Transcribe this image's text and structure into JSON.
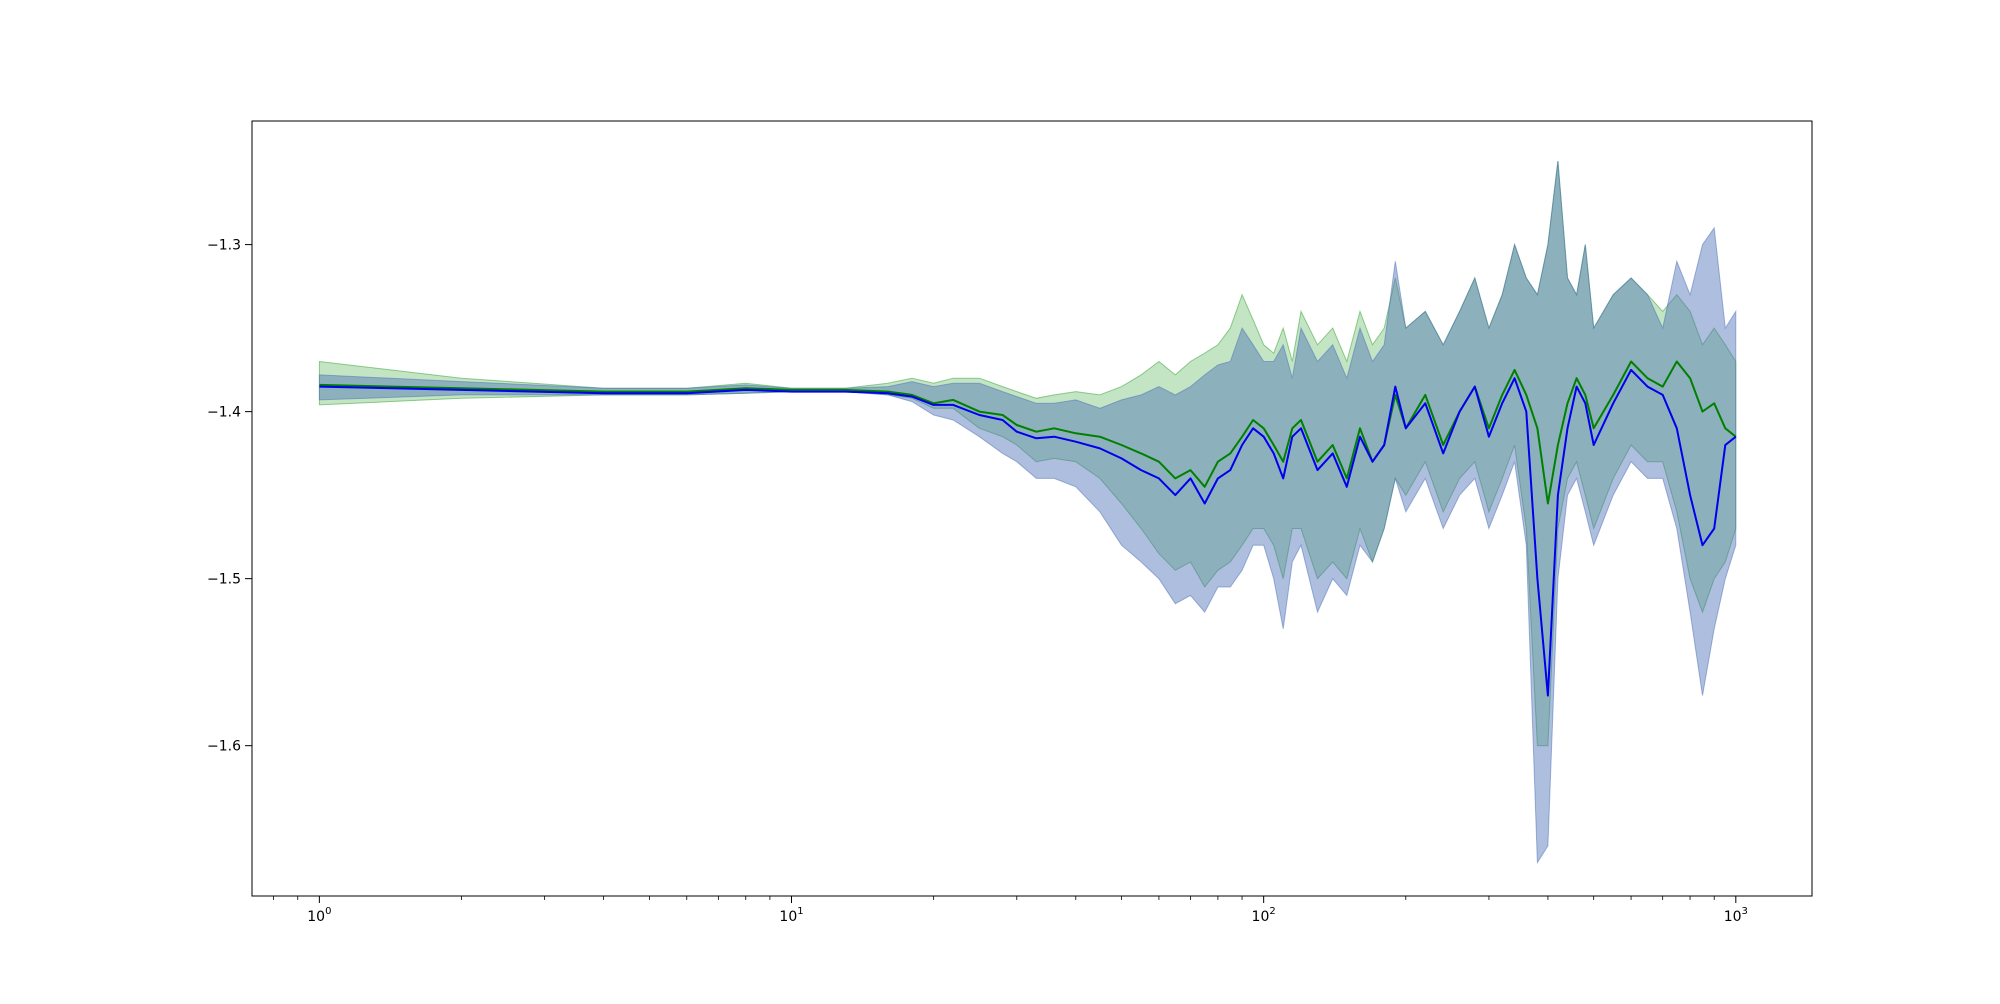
{
  "chart_data": {
    "type": "line",
    "title": "",
    "xlabel": "",
    "ylabel": "",
    "xscale": "log",
    "xlim": [
      0.72,
      1450
    ],
    "ylim": [
      -1.69,
      -1.226
    ],
    "grid": false,
    "legend": "none",
    "x_ticks": [
      {
        "value": 1,
        "base": "10",
        "exp": "0"
      },
      {
        "value": 10,
        "base": "10",
        "exp": "1"
      },
      {
        "value": 100,
        "base": "10",
        "exp": "2"
      },
      {
        "value": 1000,
        "base": "10",
        "exp": "3"
      }
    ],
    "y_ticks": [
      {
        "value": -1.3,
        "label": "−1.3"
      },
      {
        "value": -1.4,
        "label": "−1.4"
      },
      {
        "value": -1.5,
        "label": "−1.5"
      },
      {
        "value": -1.6,
        "label": "−1.6"
      }
    ],
    "series": [
      {
        "color": "#008000",
        "band_color": "#2ca02c",
        "x": [
          1,
          2,
          4,
          6,
          8,
          10,
          13,
          16,
          18,
          20,
          22,
          25,
          28,
          30,
          33,
          36,
          40,
          45,
          50,
          55,
          60,
          65,
          70,
          75,
          80,
          85,
          90,
          95,
          100,
          105,
          110,
          115,
          120,
          130,
          140,
          150,
          160,
          170,
          180,
          190,
          200,
          220,
          240,
          260,
          280,
          300,
          320,
          340,
          360,
          380,
          400,
          420,
          440,
          460,
          480,
          500,
          550,
          600,
          650,
          700,
          750,
          800,
          850,
          900,
          950,
          1000
        ],
        "mean": [
          -1.384,
          -1.386,
          -1.388,
          -1.388,
          -1.386,
          -1.387,
          -1.387,
          -1.388,
          -1.39,
          -1.395,
          -1.393,
          -1.4,
          -1.402,
          -1.408,
          -1.412,
          -1.41,
          -1.413,
          -1.415,
          -1.42,
          -1.425,
          -1.43,
          -1.44,
          -1.435,
          -1.445,
          -1.43,
          -1.425,
          -1.415,
          -1.405,
          -1.41,
          -1.42,
          -1.43,
          -1.41,
          -1.405,
          -1.43,
          -1.42,
          -1.44,
          -1.41,
          -1.43,
          -1.42,
          -1.39,
          -1.41,
          -1.39,
          -1.42,
          -1.4,
          -1.385,
          -1.41,
          -1.39,
          -1.375,
          -1.39,
          -1.41,
          -1.455,
          -1.42,
          -1.395,
          -1.38,
          -1.39,
          -1.41,
          -1.39,
          -1.37,
          -1.38,
          -1.385,
          -1.37,
          -1.38,
          -1.4,
          -1.395,
          -1.41,
          -1.415
        ],
        "lower": [
          -1.396,
          -1.392,
          -1.39,
          -1.39,
          -1.389,
          -1.388,
          -1.388,
          -1.39,
          -1.392,
          -1.398,
          -1.398,
          -1.41,
          -1.415,
          -1.42,
          -1.43,
          -1.428,
          -1.43,
          -1.44,
          -1.455,
          -1.47,
          -1.485,
          -1.495,
          -1.49,
          -1.505,
          -1.495,
          -1.49,
          -1.48,
          -1.47,
          -1.47,
          -1.48,
          -1.5,
          -1.47,
          -1.47,
          -1.5,
          -1.49,
          -1.5,
          -1.47,
          -1.49,
          -1.47,
          -1.44,
          -1.45,
          -1.43,
          -1.46,
          -1.44,
          -1.43,
          -1.46,
          -1.44,
          -1.42,
          -1.47,
          -1.6,
          -1.6,
          -1.47,
          -1.44,
          -1.43,
          -1.45,
          -1.47,
          -1.44,
          -1.42,
          -1.43,
          -1.43,
          -1.46,
          -1.5,
          -1.52,
          -1.5,
          -1.49,
          -1.47
        ],
        "upper": [
          -1.37,
          -1.38,
          -1.386,
          -1.386,
          -1.383,
          -1.386,
          -1.386,
          -1.383,
          -1.38,
          -1.383,
          -1.38,
          -1.38,
          -1.385,
          -1.388,
          -1.392,
          -1.39,
          -1.388,
          -1.39,
          -1.385,
          -1.378,
          -1.37,
          -1.378,
          -1.37,
          -1.365,
          -1.36,
          -1.35,
          -1.33,
          -1.345,
          -1.36,
          -1.365,
          -1.35,
          -1.37,
          -1.34,
          -1.36,
          -1.35,
          -1.37,
          -1.34,
          -1.36,
          -1.35,
          -1.32,
          -1.35,
          -1.34,
          -1.36,
          -1.34,
          -1.32,
          -1.35,
          -1.33,
          -1.3,
          -1.32,
          -1.33,
          -1.3,
          -1.25,
          -1.32,
          -1.33,
          -1.3,
          -1.35,
          -1.33,
          -1.32,
          -1.33,
          -1.34,
          -1.33,
          -1.34,
          -1.36,
          -1.35,
          -1.36,
          -1.37
        ]
      },
      {
        "color": "#0000ee",
        "band_color": "#4b6fb5",
        "x": [
          1,
          2,
          4,
          6,
          8,
          10,
          13,
          16,
          18,
          20,
          22,
          25,
          28,
          30,
          33,
          36,
          40,
          45,
          50,
          55,
          60,
          65,
          70,
          75,
          80,
          85,
          90,
          95,
          100,
          105,
          110,
          115,
          120,
          130,
          140,
          150,
          160,
          170,
          180,
          190,
          200,
          220,
          240,
          260,
          280,
          300,
          320,
          340,
          360,
          380,
          400,
          420,
          440,
          460,
          480,
          500,
          550,
          600,
          650,
          700,
          750,
          800,
          850,
          900,
          950,
          1000
        ],
        "mean": [
          -1.385,
          -1.387,
          -1.389,
          -1.389,
          -1.387,
          -1.388,
          -1.388,
          -1.389,
          -1.391,
          -1.396,
          -1.396,
          -1.402,
          -1.405,
          -1.412,
          -1.416,
          -1.415,
          -1.418,
          -1.422,
          -1.428,
          -1.435,
          -1.44,
          -1.45,
          -1.44,
          -1.455,
          -1.44,
          -1.435,
          -1.42,
          -1.41,
          -1.415,
          -1.425,
          -1.44,
          -1.415,
          -1.41,
          -1.435,
          -1.425,
          -1.445,
          -1.415,
          -1.43,
          -1.42,
          -1.385,
          -1.41,
          -1.395,
          -1.425,
          -1.4,
          -1.385,
          -1.415,
          -1.395,
          -1.38,
          -1.4,
          -1.5,
          -1.57,
          -1.45,
          -1.41,
          -1.385,
          -1.395,
          -1.42,
          -1.395,
          -1.375,
          -1.385,
          -1.39,
          -1.41,
          -1.45,
          -1.48,
          -1.47,
          -1.42,
          -1.415
        ],
        "lower": [
          -1.393,
          -1.39,
          -1.39,
          -1.39,
          -1.389,
          -1.388,
          -1.388,
          -1.39,
          -1.394,
          -1.402,
          -1.405,
          -1.415,
          -1.425,
          -1.43,
          -1.44,
          -1.44,
          -1.445,
          -1.46,
          -1.48,
          -1.49,
          -1.5,
          -1.515,
          -1.51,
          -1.52,
          -1.505,
          -1.505,
          -1.495,
          -1.48,
          -1.48,
          -1.5,
          -1.53,
          -1.49,
          -1.48,
          -1.52,
          -1.5,
          -1.51,
          -1.48,
          -1.49,
          -1.47,
          -1.44,
          -1.46,
          -1.44,
          -1.47,
          -1.45,
          -1.44,
          -1.47,
          -1.45,
          -1.43,
          -1.48,
          -1.67,
          -1.66,
          -1.5,
          -1.45,
          -1.44,
          -1.46,
          -1.48,
          -1.45,
          -1.43,
          -1.44,
          -1.44,
          -1.47,
          -1.52,
          -1.57,
          -1.53,
          -1.5,
          -1.48
        ],
        "upper": [
          -1.378,
          -1.382,
          -1.386,
          -1.386,
          -1.384,
          -1.386,
          -1.386,
          -1.385,
          -1.382,
          -1.385,
          -1.383,
          -1.383,
          -1.388,
          -1.391,
          -1.395,
          -1.395,
          -1.393,
          -1.398,
          -1.393,
          -1.39,
          -1.385,
          -1.39,
          -1.385,
          -1.378,
          -1.372,
          -1.37,
          -1.35,
          -1.36,
          -1.37,
          -1.37,
          -1.36,
          -1.38,
          -1.35,
          -1.37,
          -1.36,
          -1.38,
          -1.35,
          -1.37,
          -1.36,
          -1.31,
          -1.35,
          -1.34,
          -1.36,
          -1.34,
          -1.32,
          -1.35,
          -1.33,
          -1.3,
          -1.32,
          -1.33,
          -1.3,
          -1.25,
          -1.32,
          -1.33,
          -1.3,
          -1.35,
          -1.33,
          -1.32,
          -1.33,
          -1.35,
          -1.31,
          -1.33,
          -1.3,
          -1.29,
          -1.35,
          -1.34
        ]
      }
    ]
  }
}
